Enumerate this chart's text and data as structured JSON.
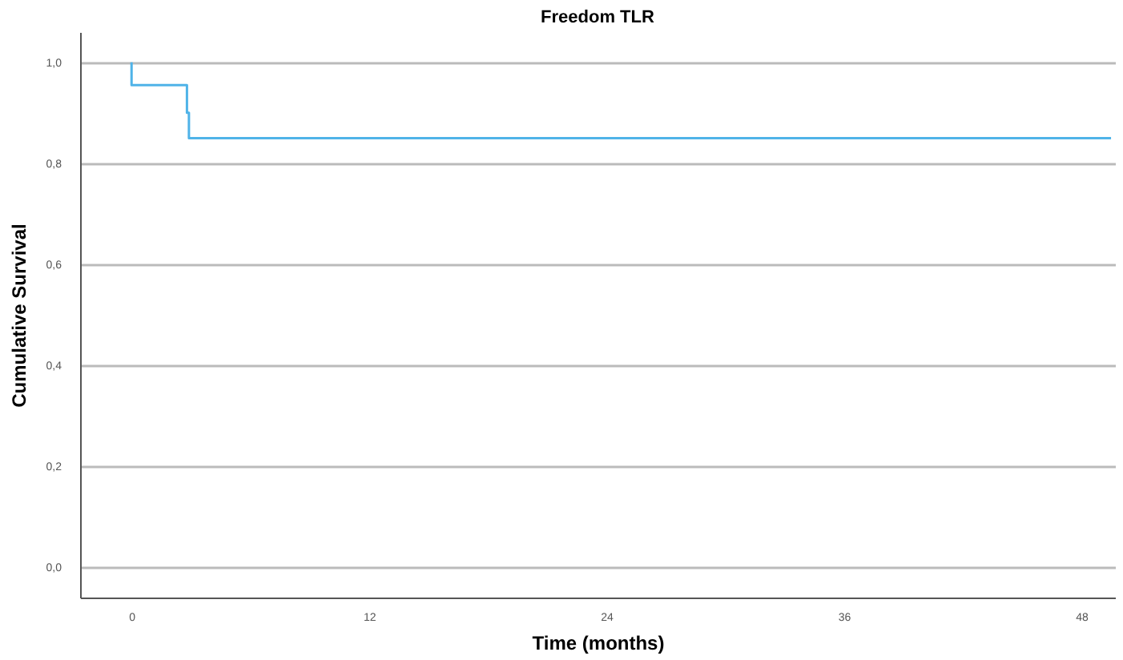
{
  "chart_data": {
    "type": "step",
    "title": "Freedom TLR",
    "xlabel": "Time (months)",
    "ylabel": "Cumulative Survival",
    "x": [
      0,
      0,
      2.8,
      2.9,
      49.5
    ],
    "series": [
      {
        "color": "#4fb3e8",
        "values": [
          1.0,
          0.955,
          0.9,
          0.85,
          0.85
        ]
      }
    ],
    "xlim": [
      -2.6,
      49.7
    ],
    "xticks": [
      0,
      12,
      24,
      36,
      48
    ],
    "ylim": [
      -0.06,
      1.06
    ],
    "yticks": [
      {
        "value": 0,
        "label": "0,0"
      },
      {
        "value": 0.2,
        "label": "0,2"
      },
      {
        "value": 0.4,
        "label": "0,4"
      },
      {
        "value": 0.6,
        "label": "0,6"
      },
      {
        "value": 0.8,
        "label": "0,8"
      },
      {
        "value": 1.0,
        "label": "1,0"
      }
    ],
    "grid": "y"
  }
}
